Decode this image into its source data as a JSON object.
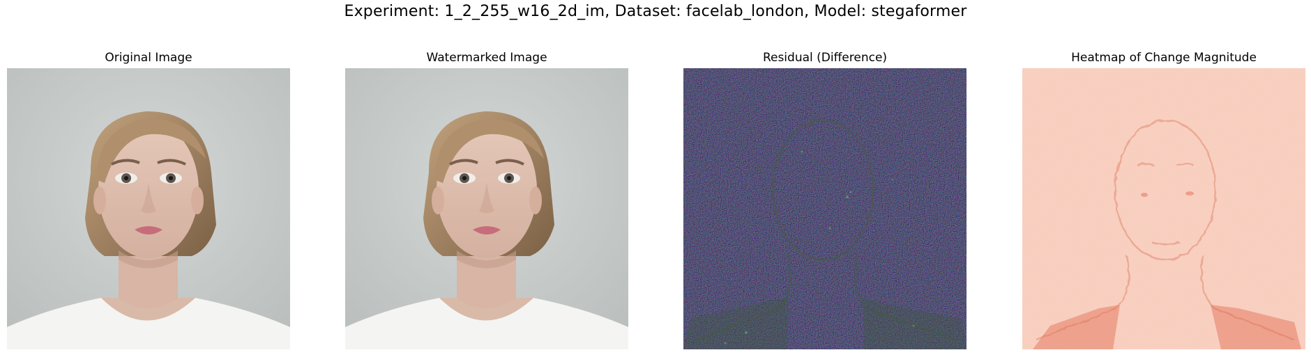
{
  "figure": {
    "suptitle": "Experiment: 1_2_255_w16_2d_im, Dataset: facelab_london, Model: stegaformer",
    "panels": [
      {
        "title": "Original Image",
        "kind": "photo",
        "content": "portrait of a woman with light brown hair tied back, neutral expression, white top, grey background"
      },
      {
        "title": "Watermarked Image",
        "kind": "photo",
        "content": "visually identical watermarked copy of the portrait"
      },
      {
        "title": "Residual (Difference)",
        "kind": "residual",
        "content": "dark noisy residual with faint colored speckle revealing face outline"
      },
      {
        "title": "Heatmap of Change Magnitude",
        "kind": "heatmap",
        "content": "light salmon/red noisy heatmap with faint face contours and darker red at shoulders"
      }
    ]
  },
  "colors": {
    "photo_background": "#c9cdcd",
    "residual_background": "#1b1626",
    "heatmap_background": "#f6c5b4",
    "heatmap_dark": "#e26b4f"
  }
}
